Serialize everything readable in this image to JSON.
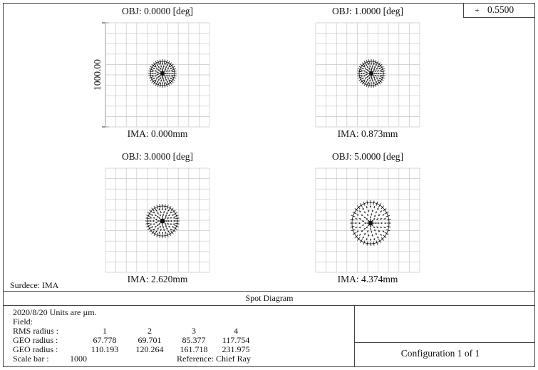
{
  "legend": {
    "symbol": "+",
    "wavelength": "0.5500"
  },
  "panels": [
    {
      "obj": "OBJ: 0.0000 [deg]",
      "ima": "IMA: 0.000mm"
    },
    {
      "obj": "OBJ: 1.0000 [deg]",
      "ima": "IMA: 0.873mm"
    },
    {
      "obj": "OBJ: 3.0000 [deg]",
      "ima": "IMA: 2.620mm"
    },
    {
      "obj": "OBJ: 5.0000 [deg]",
      "ima": "IMA: 4.374mm"
    }
  ],
  "scale_label": "1000.00",
  "surface": "Surdece: IMA",
  "title": "Spot Diagram",
  "info": {
    "date_units": "2020/8/20    Units are µm.",
    "field": "Field:",
    "fields": [
      "1",
      "2",
      "3",
      "4"
    ],
    "rms_label": "RMS radius  :",
    "rms": [
      "67.778",
      "69.701",
      "85.377",
      "117.754"
    ],
    "geo_label": "GEO radius  :",
    "geo": [
      "110.193",
      "120.264",
      "161.718",
      "231.975"
    ],
    "scale_bar_label": "Scale bar    :",
    "scale_bar": "1000",
    "reference": "Reference: Chief  Ray"
  },
  "configuration": "Configuration    1    of    1"
}
